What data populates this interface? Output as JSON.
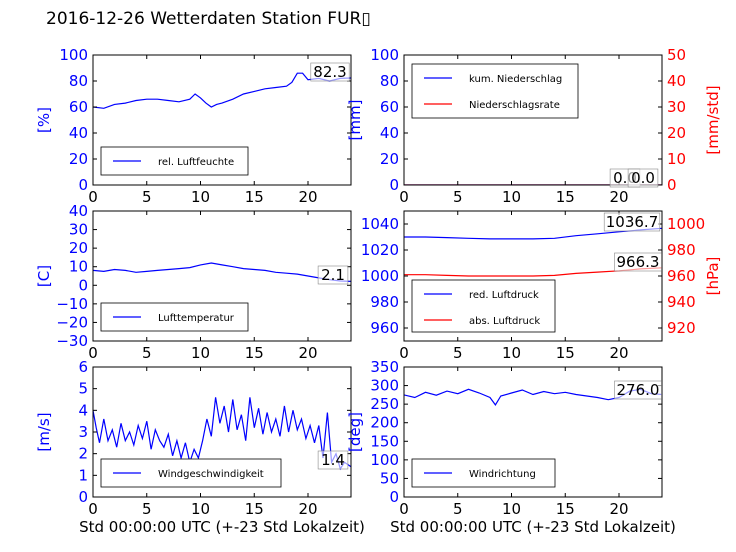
{
  "title": "2016-12-26 Wetterdaten Station FUR▯",
  "colors": {
    "blue": "#0000ff",
    "red": "#ff0000",
    "black": "#000000"
  },
  "chart_data": [
    {
      "id": "humidity",
      "type": "line",
      "ylabel": "[%]",
      "xlabel": "",
      "xlim": [
        0,
        24
      ],
      "ylim": [
        0,
        100
      ],
      "xticks": [
        "0",
        "5",
        "10",
        "15",
        "20"
      ],
      "yticks": [
        "0",
        "20",
        "40",
        "60",
        "80",
        "100"
      ],
      "legend": [
        "rel. Luftfeuchte"
      ],
      "annotations": [
        "82.3"
      ],
      "series": [
        {
          "name": "rel. Luftfeuchte",
          "color": "#0000ff",
          "x": [
            0,
            1,
            2,
            3,
            4,
            5,
            6,
            7,
            8,
            9,
            9.5,
            10,
            10.5,
            11,
            11.5,
            12,
            13,
            14,
            15,
            16,
            17,
            18,
            18.5,
            19,
            19.5,
            20,
            21,
            22,
            23,
            24
          ],
          "y": [
            60,
            59,
            62,
            63,
            65,
            66,
            66,
            65,
            64,
            66,
            70,
            67,
            63,
            60,
            62,
            63,
            66,
            70,
            72,
            74,
            75,
            76,
            79,
            86,
            86,
            81,
            82,
            80,
            82,
            82.3
          ]
        }
      ]
    },
    {
      "id": "precip",
      "type": "line",
      "ylabel": "[mm]",
      "y2label": "[mm/std]",
      "xlabel": "",
      "xlim": [
        0,
        24
      ],
      "ylim": [
        0,
        100
      ],
      "y2lim": [
        0,
        50
      ],
      "xticks": [
        "0",
        "5",
        "10",
        "15",
        "20"
      ],
      "yticks": [
        "0",
        "20",
        "40",
        "60",
        "80",
        "100"
      ],
      "y2ticks": [
        "0",
        "10",
        "20",
        "30",
        "40",
        "50"
      ],
      "legend": [
        "kum. Niederschlag",
        "Niederschlagsrate"
      ],
      "annotations": [
        "0.0",
        "0.0"
      ],
      "series": [
        {
          "name": "kum. Niederschlag",
          "color": "#0000ff",
          "x": [
            0,
            24
          ],
          "y": [
            0,
            0
          ]
        },
        {
          "name": "Niederschlagsrate",
          "color": "#ff0000",
          "x": [
            0,
            24
          ],
          "y": [
            0,
            0
          ]
        }
      ]
    },
    {
      "id": "temperature",
      "type": "line",
      "ylabel": "[C]",
      "xlabel": "",
      "xlim": [
        0,
        24
      ],
      "ylim": [
        -30,
        40
      ],
      "xticks": [
        "0",
        "5",
        "10",
        "15",
        "20"
      ],
      "yticks": [
        "−30",
        "−20",
        "−10",
        "0",
        "10",
        "20",
        "30",
        "40"
      ],
      "legend": [
        "Lufttemperatur"
      ],
      "annotations": [
        "2.1"
      ],
      "series": [
        {
          "name": "Lufttemperatur",
          "color": "#0000ff",
          "x": [
            0,
            1,
            2,
            3,
            4,
            5,
            6,
            7,
            8,
            9,
            10,
            11,
            12,
            13,
            14,
            15,
            16,
            17,
            18,
            19,
            20,
            21,
            22,
            23,
            24
          ],
          "y": [
            8,
            7.5,
            8.5,
            8,
            7,
            7.5,
            8,
            8.5,
            9,
            9.5,
            11,
            12,
            11,
            10,
            9,
            8.5,
            8,
            7,
            6.5,
            6,
            5,
            4,
            3,
            2.3,
            2.1
          ]
        }
      ]
    },
    {
      "id": "pressure",
      "type": "line",
      "ylabel": "",
      "y2label": "[hPa]",
      "xlabel": "",
      "xlim": [
        0,
        24
      ],
      "ylim": [
        950,
        1050
      ],
      "y2lim": [
        910,
        1010
      ],
      "xticks": [
        "0",
        "5",
        "10",
        "15",
        "20"
      ],
      "yticks": [
        "960",
        "980",
        "1000",
        "1020",
        "1040"
      ],
      "y2ticks": [
        "920",
        "940",
        "960",
        "980",
        "1000"
      ],
      "legend": [
        "red. Luftdruck",
        "abs. Luftdruck"
      ],
      "annotations": [
        "1036.7",
        "966.3"
      ],
      "series": [
        {
          "name": "red. Luftdruck",
          "color": "#0000ff",
          "x": [
            0,
            2,
            4,
            6,
            8,
            10,
            12,
            14,
            16,
            18,
            20,
            22,
            24
          ],
          "y": [
            1030,
            1030,
            1029.5,
            1029,
            1028.5,
            1028.5,
            1028.5,
            1029,
            1031,
            1032.5,
            1034,
            1035.5,
            1036.7
          ]
        },
        {
          "name": "abs. Luftdruck",
          "color": "#ff0000",
          "x": [
            0,
            2,
            4,
            6,
            8,
            10,
            12,
            14,
            16,
            18,
            20,
            22,
            24
          ],
          "y": [
            961,
            961,
            960.5,
            960,
            960,
            960,
            960,
            960.5,
            962,
            963,
            964,
            965.5,
            966.3
          ],
          "axis": "y2"
        }
      ]
    },
    {
      "id": "windspeed",
      "type": "line",
      "ylabel": "[m/s]",
      "xlabel": "Std 00:00:00 UTC (+-23 Std Lokalzeit)",
      "xlim": [
        0,
        24
      ],
      "ylim": [
        0,
        6
      ],
      "xticks": [
        "0",
        "5",
        "10",
        "15",
        "20"
      ],
      "yticks": [
        "0",
        "1",
        "2",
        "3",
        "4",
        "5",
        "6"
      ],
      "legend": [
        "Windgeschwindigkeit"
      ],
      "annotations": [
        "1.4"
      ],
      "series": [
        {
          "name": "Windgeschwindigkeit",
          "color": "#0000ff",
          "x": [
            0,
            0.3,
            0.6,
            1,
            1.4,
            1.8,
            2.2,
            2.6,
            3,
            3.4,
            3.8,
            4.2,
            4.6,
            5,
            5.4,
            5.8,
            6.2,
            6.6,
            7,
            7.4,
            7.8,
            8.2,
            8.6,
            9,
            9.4,
            9.8,
            10.2,
            10.6,
            11,
            11.4,
            11.8,
            12.2,
            12.6,
            13,
            13.4,
            13.8,
            14.2,
            14.6,
            15,
            15.4,
            15.8,
            16.2,
            16.6,
            17,
            17.4,
            17.8,
            18.2,
            18.6,
            19,
            19.4,
            19.8,
            20.2,
            20.6,
            21,
            21.4,
            21.8,
            22.2,
            22.6,
            23,
            23.4,
            24
          ],
          "y": [
            4,
            3.2,
            2.5,
            3.6,
            2.6,
            3.1,
            2.3,
            3.4,
            2.6,
            3.0,
            2.4,
            3.3,
            2.7,
            3.5,
            2.2,
            3.1,
            2.6,
            2.3,
            2.9,
            1.9,
            2.6,
            1.8,
            2.5,
            1.6,
            2.2,
            1.8,
            2.6,
            3.6,
            2.8,
            4.6,
            3.4,
            4.2,
            3.0,
            4.5,
            3.1,
            3.8,
            2.6,
            4.6,
            3.2,
            4.1,
            2.9,
            3.9,
            3.0,
            3.6,
            2.8,
            4.2,
            3.0,
            4.0,
            3.1,
            3.6,
            2.7,
            3.3,
            2.5,
            3.3,
            1.8,
            3.9,
            1.6,
            2.0,
            1.3,
            1.6,
            1.4
          ]
        }
      ]
    },
    {
      "id": "winddir",
      "type": "line",
      "ylabel": "[deg]",
      "xlabel": "Std 00:00:00 UTC (+-23 Std Lokalzeit)",
      "xlim": [
        0,
        24
      ],
      "ylim": [
        0,
        350
      ],
      "xticks": [
        "0",
        "5",
        "10",
        "15",
        "20"
      ],
      "yticks": [
        "0",
        "50",
        "100",
        "150",
        "200",
        "250",
        "300",
        "350"
      ],
      "legend": [
        "Windrichtung"
      ],
      "annotations": [
        "276.0"
      ],
      "series": [
        {
          "name": "Windrichtung",
          "color": "#0000ff",
          "x": [
            0,
            1,
            2,
            3,
            4,
            5,
            6,
            7,
            8,
            8.5,
            9,
            10,
            11,
            12,
            13,
            14,
            15,
            16,
            17,
            18,
            19,
            20,
            21,
            22,
            23,
            24
          ],
          "y": [
            275,
            268,
            282,
            274,
            285,
            278,
            290,
            280,
            268,
            248,
            272,
            280,
            288,
            276,
            284,
            278,
            282,
            276,
            272,
            268,
            262,
            268,
            285,
            290,
            278,
            276
          ]
        }
      ]
    }
  ]
}
